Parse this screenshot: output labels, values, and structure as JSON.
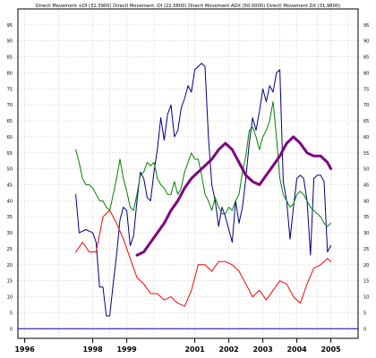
{
  "chart_data": {
    "type": "line",
    "title": "Directl Movement +DI (31.3900) Directl Movement -DI (22.5800) Directl Movement ADX (50.0000) Directl Movement DX (31.9800)",
    "xlabel": "",
    "ylabel": "",
    "xlim": [
      1995.8,
      2005.8
    ],
    "ylim": [
      -3,
      100
    ],
    "grid": true,
    "legend": "none",
    "y_ticks": [
      0,
      5,
      10,
      15,
      20,
      25,
      30,
      35,
      40,
      45,
      50,
      55,
      60,
      65,
      70,
      75,
      80,
      85,
      90,
      95
    ],
    "x_ticks": [
      {
        "label": "1996",
        "x": 1996.0
      },
      {
        "label": "1998",
        "x": 1998.0
      },
      {
        "label": "1999",
        "x": 1999.0
      },
      {
        "label": "2001",
        "x": 2001.0
      },
      {
        "label": "2002",
        "x": 2002.0
      },
      {
        "label": "2003",
        "x": 2003.0
      },
      {
        "label": "2004",
        "x": 2004.0
      },
      {
        "label": "2005",
        "x": 2005.0
      }
    ],
    "vgrid": [
      1997.0,
      1998.5,
      1999.8,
      2000.8,
      2002.3,
      2003.5,
      2004.6,
      2005.5
    ],
    "series": [
      {
        "color": "#000080",
        "width": 1,
        "x": [
          1997.5,
          1997.6,
          1997.8,
          1998.0,
          1998.1,
          1998.2,
          1998.3,
          1998.4,
          1998.5,
          1998.6,
          1998.7,
          1998.8,
          1998.9,
          1999.0,
          1999.1,
          1999.2,
          1999.3,
          1999.4,
          1999.5,
          1999.6,
          1999.7,
          1999.8,
          1999.9,
          2000.0,
          2000.1,
          2000.2,
          2000.3,
          2000.4,
          2000.5,
          2000.6,
          2000.7,
          2000.8,
          2000.9,
          2001.0,
          2001.1,
          2001.2,
          2001.3,
          2001.4,
          2001.5,
          2001.6,
          2001.7,
          2001.8,
          2001.9,
          2002.0,
          2002.1,
          2002.2,
          2002.3,
          2002.4,
          2002.5,
          2002.6,
          2002.7,
          2002.8,
          2002.9,
          2003.0,
          2003.1,
          2003.2,
          2003.3,
          2003.4,
          2003.5,
          2003.6,
          2003.7,
          2003.8,
          2003.9,
          2004.0,
          2004.1,
          2004.2,
          2004.3,
          2004.4,
          2004.5,
          2004.6,
          2004.7,
          2004.8,
          2004.9,
          2005.0
        ],
        "y": [
          42,
          30,
          31,
          30,
          27,
          13,
          13,
          4,
          4,
          14,
          23,
          34,
          38,
          37,
          26,
          29,
          40,
          49,
          47,
          41,
          40,
          49,
          56,
          66,
          59,
          67,
          70,
          60,
          62,
          69,
          72,
          76,
          74,
          81,
          82,
          83,
          82,
          60,
          45,
          40,
          32,
          38,
          35,
          31,
          27,
          40,
          33,
          38,
          47,
          58,
          66,
          62,
          68,
          75,
          71,
          76,
          74,
          80,
          81,
          46,
          40,
          28,
          38,
          47,
          48,
          47,
          40,
          23,
          47,
          48,
          48,
          46,
          24,
          26
        ]
      },
      {
        "color": "#008000",
        "width": 1,
        "x": [
          1997.5,
          1997.6,
          1997.7,
          1997.8,
          1997.9,
          1998.0,
          1998.1,
          1998.2,
          1998.3,
          1998.4,
          1998.5,
          1998.6,
          1998.7,
          1998.8,
          1998.9,
          1999.0,
          1999.1,
          1999.2,
          1999.3,
          1999.4,
          1999.5,
          1999.6,
          1999.7,
          1999.8,
          1999.9,
          2000.0,
          2000.1,
          2000.2,
          2000.3,
          2000.4,
          2000.5,
          2000.6,
          2000.7,
          2000.8,
          2000.9,
          2001.0,
          2001.1,
          2001.2,
          2001.3,
          2001.4,
          2001.5,
          2001.6,
          2001.7,
          2001.8,
          2001.9,
          2002.0,
          2002.1,
          2002.2,
          2002.3,
          2002.4,
          2002.5,
          2002.6,
          2002.7,
          2002.8,
          2002.9,
          2003.0,
          2003.1,
          2003.2,
          2003.3,
          2003.4,
          2003.5,
          2003.6,
          2003.7,
          2003.8,
          2003.9,
          2004.0,
          2004.1,
          2004.2,
          2004.3,
          2004.4,
          2004.5,
          2004.6,
          2004.7,
          2004.8,
          2004.9,
          2005.0
        ],
        "y": [
          56,
          52,
          47,
          45,
          45,
          44,
          42,
          40,
          40,
          38,
          37,
          42,
          47,
          53,
          47,
          43,
          38,
          37,
          42,
          48,
          49,
          52,
          51,
          52,
          47,
          45,
          44,
          42,
          42,
          46,
          42,
          44,
          49,
          52,
          55,
          53,
          53,
          48,
          42,
          40,
          37,
          41,
          38,
          36,
          36,
          38,
          37,
          40,
          42,
          49,
          54,
          62,
          63,
          60,
          56,
          60,
          62,
          65,
          71,
          60,
          47,
          42,
          40,
          38,
          39,
          42,
          43,
          42,
          40,
          38,
          37,
          36,
          35,
          33,
          32,
          33
        ]
      },
      {
        "color": "#ff0000",
        "width": 1,
        "x": [
          1997.5,
          1997.7,
          1997.9,
          1998.1,
          1998.3,
          1998.5,
          1998.7,
          1998.9,
          1999.1,
          1999.3,
          1999.5,
          1999.7,
          1999.9,
          2000.1,
          2000.3,
          2000.5,
          2000.7,
          2000.9,
          2001.1,
          2001.3,
          2001.5,
          2001.7,
          2001.9,
          2002.1,
          2002.3,
          2002.5,
          2002.7,
          2002.9,
          2003.1,
          2003.3,
          2003.5,
          2003.7,
          2003.9,
          2004.1,
          2004.3,
          2004.5,
          2004.7,
          2004.9,
          2005.0
        ],
        "y": [
          24,
          27,
          24,
          24,
          35,
          37,
          33,
          28,
          22,
          16,
          14,
          11,
          11,
          9,
          10,
          8,
          7,
          12,
          20,
          20,
          18,
          21,
          21,
          20,
          18,
          14,
          10,
          12,
          9,
          12,
          15,
          14,
          10,
          8,
          14,
          19,
          20,
          22,
          21
        ]
      },
      {
        "color": "#800080",
        "width": 3,
        "x": [
          1999.3,
          1999.5,
          1999.7,
          1999.9,
          2000.1,
          2000.3,
          2000.5,
          2000.7,
          2000.9,
          2001.1,
          2001.3,
          2001.5,
          2001.7,
          2001.9,
          2002.1,
          2002.3,
          2002.5,
          2002.7,
          2002.9,
          2003.1,
          2003.3,
          2003.5,
          2003.7,
          2003.9,
          2004.1,
          2004.3,
          2004.5,
          2004.7,
          2004.9,
          2005.0
        ],
        "y": [
          23,
          24,
          27,
          30,
          33,
          37,
          40,
          44,
          47,
          49,
          51,
          53,
          56,
          58,
          56,
          52,
          48,
          46,
          45,
          48,
          51,
          54,
          58,
          60,
          58,
          55,
          54,
          54,
          52,
          50
        ]
      }
    ]
  }
}
